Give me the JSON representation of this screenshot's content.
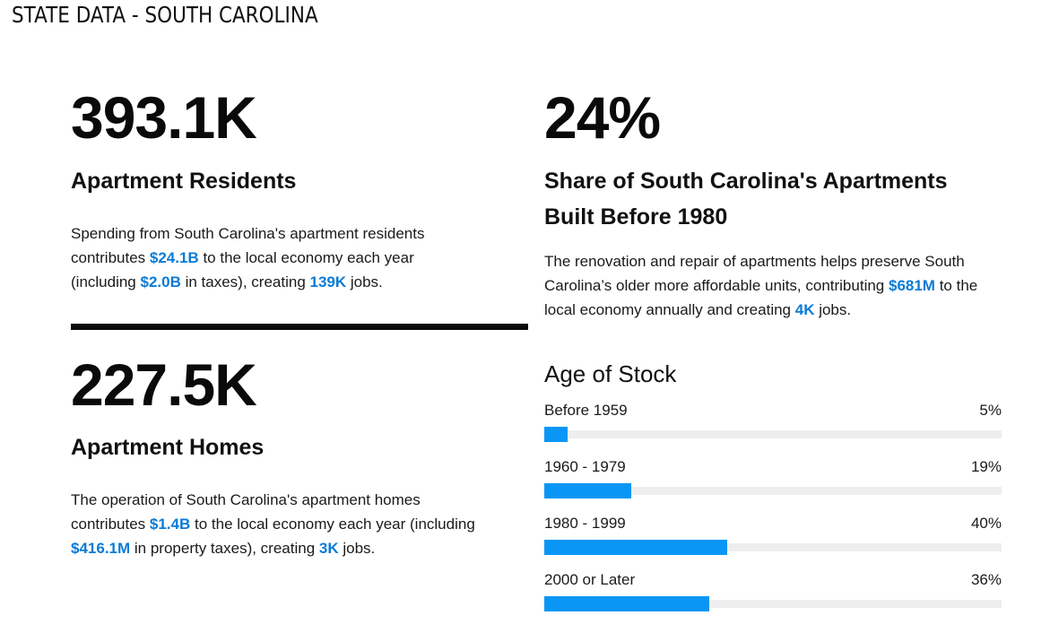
{
  "page": {
    "title": "STATE DATA - SOUTH CAROLINA"
  },
  "residents": {
    "value": "393.1K",
    "heading": "Apartment Residents",
    "text_1": "Spending from South Carolina's apartment residents contributes ",
    "amount_economy": "$24.1B",
    "text_2": " to the local economy each year (including ",
    "amount_taxes": "$2.0B",
    "text_3": " in taxes), creating ",
    "jobs": "139K",
    "text_4": " jobs."
  },
  "homes": {
    "value": "227.5K",
    "heading": "Apartment Homes",
    "text_1": "The operation of South Carolina's apartment homes contributes ",
    "amount_economy": "$1.4B",
    "text_2": " to the local economy each year (including ",
    "amount_taxes": "$416.1M",
    "text_3": " in property taxes), creating ",
    "jobs": "3K",
    "text_4": " jobs."
  },
  "share": {
    "value": "24%",
    "heading": "Share of South Carolina's Apartments Built Before 1980",
    "text_1": "The renovation and repair of apartments helps preserve South Carolina’s older more affordable units, contributing ",
    "amount": "$681M",
    "text_2": " to the local economy annually and creating ",
    "jobs": "4K",
    "text_3": " jobs."
  },
  "age_of_stock": {
    "title": "Age of Stock",
    "bar_color": "#0a96f4",
    "track_color": "#eeeeee",
    "items": [
      {
        "label": "Before 1959",
        "pct_label": "5%",
        "value": 5
      },
      {
        "label": "1960 - 1979",
        "pct_label": "19%",
        "value": 19
      },
      {
        "label": "1980 - 1999",
        "pct_label": "40%",
        "value": 40
      },
      {
        "label": "2000 or Later",
        "pct_label": "36%",
        "value": 36
      }
    ]
  },
  "colors": {
    "highlight": "#0a7bd6",
    "text": "#111111"
  }
}
